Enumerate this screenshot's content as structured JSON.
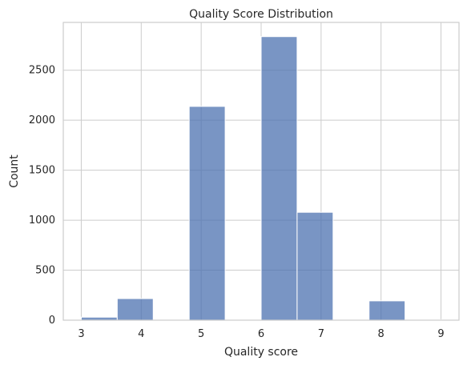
{
  "chart_data": {
    "type": "bar",
    "title": "Quality Score Distribution",
    "xlabel": "Quality score",
    "ylabel": "Count",
    "bins": [
      {
        "start": 3.0,
        "end": 3.6,
        "count": 30
      },
      {
        "start": 3.6,
        "end": 4.2,
        "count": 216
      },
      {
        "start": 4.2,
        "end": 4.8,
        "count": 0
      },
      {
        "start": 4.8,
        "end": 5.4,
        "count": 2138
      },
      {
        "start": 5.4,
        "end": 6.0,
        "count": 0
      },
      {
        "start": 6.0,
        "end": 6.6,
        "count": 2836
      },
      {
        "start": 6.6,
        "end": 7.2,
        "count": 1079
      },
      {
        "start": 7.2,
        "end": 7.8,
        "count": 0
      },
      {
        "start": 7.8,
        "end": 8.4,
        "count": 193
      },
      {
        "start": 8.4,
        "end": 9.0,
        "count": 5
      }
    ],
    "x_ticks": [
      3,
      4,
      5,
      6,
      7,
      8,
      9
    ],
    "y_ticks": [
      0,
      500,
      1000,
      1500,
      2000,
      2500
    ],
    "xlim": [
      2.7,
      9.3
    ],
    "ylim": [
      0,
      2978
    ],
    "grid": true,
    "bar_color": "#4c72b0",
    "bar_opacity": 0.75
  }
}
